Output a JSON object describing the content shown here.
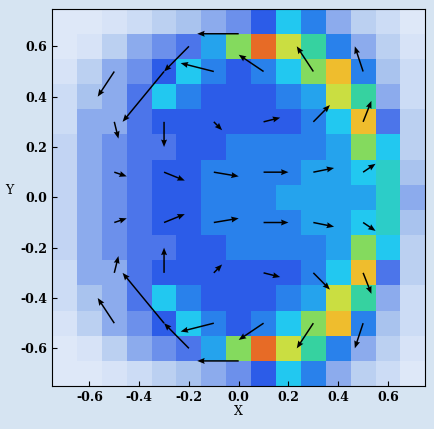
{
  "chart_data": {
    "type": "heatmap",
    "x_label": "X",
    "y_label": "Y",
    "xlim": [
      -0.75,
      0.75
    ],
    "ylim": [
      -0.75,
      0.75
    ],
    "xticks": [
      -0.6,
      -0.4,
      -0.2,
      {
        "value": 0,
        "label": "0.0"
      },
      0.2,
      0.4,
      0.6
    ],
    "yticks": [
      -0.6,
      -0.4,
      -0.2,
      {
        "value": 0,
        "label": "0.0"
      },
      0.2,
      0.4,
      0.6
    ],
    "cell_x": [
      -0.75,
      -0.65,
      -0.55,
      -0.45,
      -0.35,
      -0.25,
      -0.15,
      -0.05,
      0.05,
      0.15,
      0.25,
      0.35,
      0.45,
      0.55,
      0.65,
      0.75
    ],
    "cell_y": [
      -0.75,
      -0.65,
      -0.55,
      -0.45,
      -0.35,
      -0.25,
      -0.15,
      -0.05,
      0.05,
      0.15,
      0.25,
      0.35,
      0.45,
      0.55,
      0.65,
      0.75
    ],
    "cells": [
      [
        0.1,
        0.1,
        0.12,
        0.15,
        0.2,
        0.25,
        0.3,
        0.35,
        0.45,
        0.6,
        0.5,
        0.3,
        0.2,
        0.15,
        0.1
      ],
      [
        0.1,
        0.12,
        0.2,
        0.3,
        0.35,
        0.4,
        0.55,
        0.8,
        0.95,
        0.85,
        0.7,
        0.5,
        0.3,
        0.2,
        0.12
      ],
      [
        0.12,
        0.2,
        0.3,
        0.35,
        0.45,
        0.6,
        0.5,
        0.45,
        0.5,
        0.6,
        0.8,
        0.9,
        0.5,
        0.25,
        0.15
      ],
      [
        0.15,
        0.25,
        0.3,
        0.4,
        0.6,
        0.5,
        0.45,
        0.45,
        0.45,
        0.5,
        0.55,
        0.85,
        0.7,
        0.3,
        0.15
      ],
      [
        0.15,
        0.3,
        0.3,
        0.4,
        0.45,
        0.45,
        0.45,
        0.45,
        0.45,
        0.45,
        0.5,
        0.6,
        0.9,
        0.4,
        0.2
      ],
      [
        0.18,
        0.3,
        0.35,
        0.4,
        0.4,
        0.45,
        0.45,
        0.5,
        0.5,
        0.5,
        0.5,
        0.55,
        0.8,
        0.6,
        0.2
      ],
      [
        0.18,
        0.3,
        0.35,
        0.4,
        0.45,
        0.45,
        0.5,
        0.5,
        0.5,
        0.5,
        0.55,
        0.55,
        0.6,
        0.65,
        0.25
      ],
      [
        0.18,
        0.3,
        0.35,
        0.4,
        0.45,
        0.45,
        0.5,
        0.5,
        0.5,
        0.55,
        0.55,
        0.55,
        0.55,
        0.65,
        0.3
      ],
      [
        0.18,
        0.3,
        0.35,
        0.4,
        0.45,
        0.45,
        0.5,
        0.5,
        0.5,
        0.5,
        0.55,
        0.55,
        0.6,
        0.65,
        0.25
      ],
      [
        0.18,
        0.3,
        0.35,
        0.4,
        0.4,
        0.45,
        0.45,
        0.5,
        0.5,
        0.5,
        0.5,
        0.55,
        0.8,
        0.6,
        0.2
      ],
      [
        0.15,
        0.3,
        0.3,
        0.4,
        0.45,
        0.45,
        0.45,
        0.45,
        0.45,
        0.45,
        0.5,
        0.6,
        0.9,
        0.4,
        0.2
      ],
      [
        0.15,
        0.25,
        0.3,
        0.4,
        0.6,
        0.5,
        0.45,
        0.45,
        0.45,
        0.5,
        0.55,
        0.85,
        0.7,
        0.3,
        0.15
      ],
      [
        0.12,
        0.2,
        0.3,
        0.35,
        0.45,
        0.6,
        0.5,
        0.45,
        0.5,
        0.6,
        0.8,
        0.9,
        0.5,
        0.25,
        0.15
      ],
      [
        0.1,
        0.12,
        0.2,
        0.3,
        0.35,
        0.4,
        0.55,
        0.8,
        0.95,
        0.85,
        0.7,
        0.5,
        0.3,
        0.2,
        0.12
      ],
      [
        0.1,
        0.1,
        0.12,
        0.15,
        0.2,
        0.25,
        0.3,
        0.35,
        0.45,
        0.6,
        0.5,
        0.3,
        0.2,
        0.15,
        0.1
      ]
    ],
    "arrows": {
      "x": [
        -0.5,
        -0.3,
        -0.1,
        0.1,
        0.3,
        0.5,
        -0.5,
        -0.3,
        -0.1,
        0.1,
        0.3,
        0.5,
        -0.5,
        -0.3,
        -0.1,
        0.1,
        0.3,
        0.5,
        -0.5,
        -0.3,
        -0.1,
        0.1,
        0.3,
        0.5,
        -0.5,
        -0.3,
        -0.1,
        0.1,
        0.3,
        0.5,
        -0.5,
        -0.3,
        -0.1,
        0.1,
        0.3,
        0.5,
        0.0,
        -0.2,
        0.0,
        -0.2
      ],
      "y": [
        0.5,
        0.5,
        0.5,
        0.5,
        0.5,
        0.5,
        0.3,
        0.3,
        0.3,
        0.3,
        0.3,
        0.3,
        0.1,
        0.1,
        0.1,
        0.1,
        0.1,
        0.1,
        -0.1,
        -0.1,
        -0.1,
        -0.1,
        -0.1,
        -0.1,
        -0.3,
        -0.3,
        -0.3,
        -0.3,
        -0.3,
        -0.3,
        -0.5,
        -0.5,
        -0.5,
        -0.5,
        -0.5,
        -0.5,
        0.65,
        0.6,
        -0.65,
        -0.6
      ],
      "u": [
        -0.2,
        -0.5,
        -0.4,
        -0.3,
        -0.2,
        -0.1,
        0.05,
        0.0,
        0.1,
        0.2,
        0.2,
        0.1,
        0.15,
        0.25,
        0.3,
        0.3,
        0.25,
        0.15,
        0.15,
        0.25,
        0.3,
        0.3,
        0.25,
        0.15,
        0.05,
        0.0,
        0.1,
        0.2,
        0.2,
        0.1,
        -0.2,
        -0.5,
        -0.4,
        -0.3,
        -0.2,
        -0.1,
        -0.5,
        -0.3,
        -0.5,
        -0.3
      ],
      "v": [
        -0.3,
        -0.6,
        0.1,
        0.2,
        0.3,
        0.3,
        -0.2,
        -0.3,
        -0.1,
        0.05,
        0.2,
        0.25,
        -0.05,
        -0.1,
        -0.05,
        0.0,
        0.05,
        0.1,
        0.05,
        0.1,
        0.05,
        0.0,
        -0.05,
        -0.1,
        0.2,
        0.3,
        0.1,
        -0.05,
        -0.2,
        -0.25,
        0.3,
        0.6,
        -0.1,
        -0.2,
        -0.3,
        -0.3,
        0.0,
        -0.3,
        0.0,
        0.3
      ]
    }
  }
}
